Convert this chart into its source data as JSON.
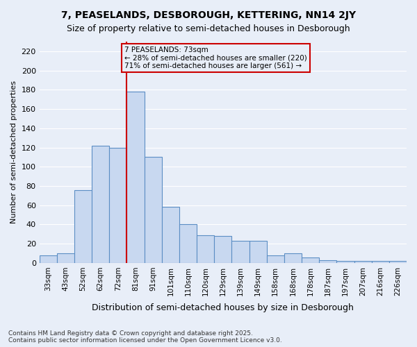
{
  "title_line1": "7, PEASELANDS, DESBOROUGH, KETTERING, NN14 2JY",
  "title_line2": "Size of property relative to semi-detached houses in Desborough",
  "xlabel": "Distribution of semi-detached houses by size in Desborough",
  "ylabel": "Number of semi-detached properties",
  "bin_labels": [
    "33sqm",
    "43sqm",
    "52sqm",
    "62sqm",
    "72sqm",
    "81sqm",
    "91sqm",
    "101sqm",
    "110sqm",
    "120sqm",
    "129sqm",
    "139sqm",
    "149sqm",
    "158sqm",
    "168sqm",
    "178sqm",
    "187sqm",
    "197sqm",
    "207sqm",
    "216sqm",
    "226sqm"
  ],
  "counts": [
    8,
    10,
    76,
    122,
    120,
    178,
    110,
    58,
    40,
    29,
    28,
    23,
    23,
    8,
    10,
    6,
    3,
    2,
    2,
    2,
    2
  ],
  "property_label": "7 PEASELANDS: 73sqm",
  "pct_smaller": 28,
  "pct_larger": 71,
  "n_smaller": 220,
  "n_larger": 561,
  "property_line_x": 4.5,
  "bar_color": "#c8d8f0",
  "bar_edge_color": "#5b8ec4",
  "line_color": "#cc0000",
  "annotation_box_edge": "#cc0000",
  "background_color": "#e8eef8",
  "grid_color": "#ffffff",
  "footnote1": "Contains HM Land Registry data © Crown copyright and database right 2025.",
  "footnote2": "Contains public sector information licensed under the Open Government Licence v3.0.",
  "ylim": [
    0,
    230
  ],
  "yticks": [
    0,
    20,
    40,
    60,
    80,
    100,
    120,
    140,
    160,
    180,
    200,
    220
  ]
}
